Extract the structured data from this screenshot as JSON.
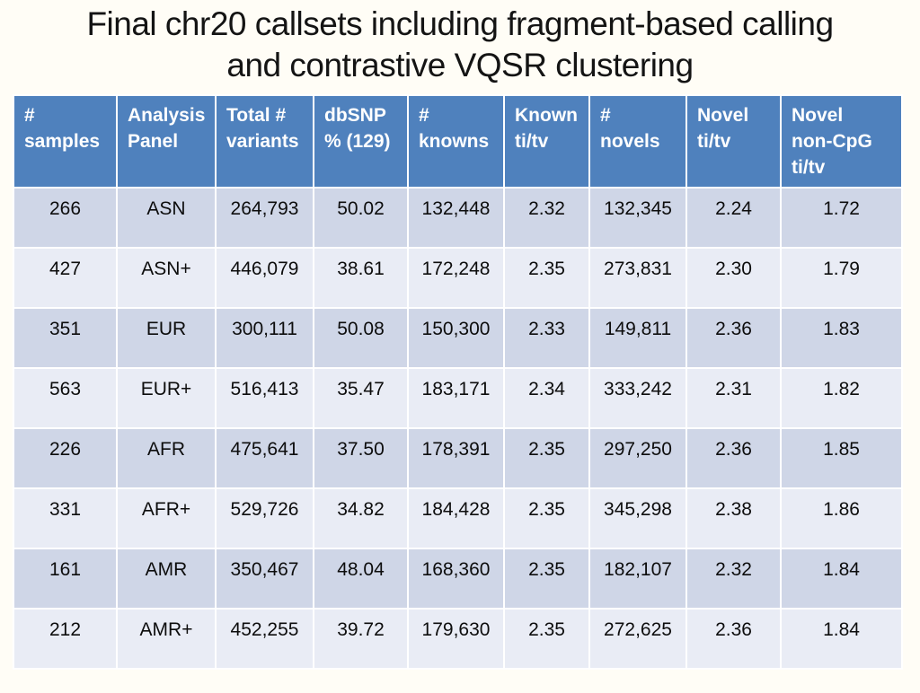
{
  "slide": {
    "title": {
      "line1": "Final chr20 callsets including fragment-based calling",
      "line2": "and contrastive VQSR clustering"
    }
  },
  "colors": {
    "header_bg": "#4f81bd",
    "row_band_dark": "#cfd6e7",
    "row_band_light": "#e9ecf5",
    "header_text": "#ffffff",
    "body_text": "#0d0d0d",
    "grid": "#ffffff",
    "slide_bg": "#fffdf6",
    "title_text": "#141414"
  },
  "table": {
    "headers": [
      "#\nsamples",
      "Analysis\nPanel",
      "Total #\nvariants",
      "dbSNP\n% (129)",
      "#\nknowns",
      "Known\nti/tv",
      "#\nnovels",
      "Novel\nti/tv",
      "Novel\nnon-CpG\nti/tv"
    ],
    "rows": [
      [
        "266",
        "ASN",
        "264,793",
        "50.02",
        "132,448",
        "2.32",
        "132,345",
        "2.24",
        "1.72"
      ],
      [
        "427",
        "ASN+",
        "446,079",
        "38.61",
        "172,248",
        "2.35",
        "273,831",
        "2.30",
        "1.79"
      ],
      [
        "351",
        "EUR",
        "300,111",
        "50.08",
        "150,300",
        "2.33",
        "149,811",
        "2.36",
        "1.83"
      ],
      [
        "563",
        "EUR+",
        "516,413",
        "35.47",
        "183,171",
        "2.34",
        "333,242",
        "2.31",
        "1.82"
      ],
      [
        "226",
        "AFR",
        "475,641",
        "37.50",
        "178,391",
        "2.35",
        "297,250",
        "2.36",
        "1.85"
      ],
      [
        "331",
        "AFR+",
        "529,726",
        "34.82",
        "184,428",
        "2.35",
        "345,298",
        "2.38",
        "1.86"
      ],
      [
        "161",
        "AMR",
        "350,467",
        "48.04",
        "168,360",
        "2.35",
        "182,107",
        "2.32",
        "1.84"
      ],
      [
        "212",
        "AMR+",
        "452,255",
        "39.72",
        "179,630",
        "2.35",
        "272,625",
        "2.36",
        "1.84"
      ]
    ]
  }
}
